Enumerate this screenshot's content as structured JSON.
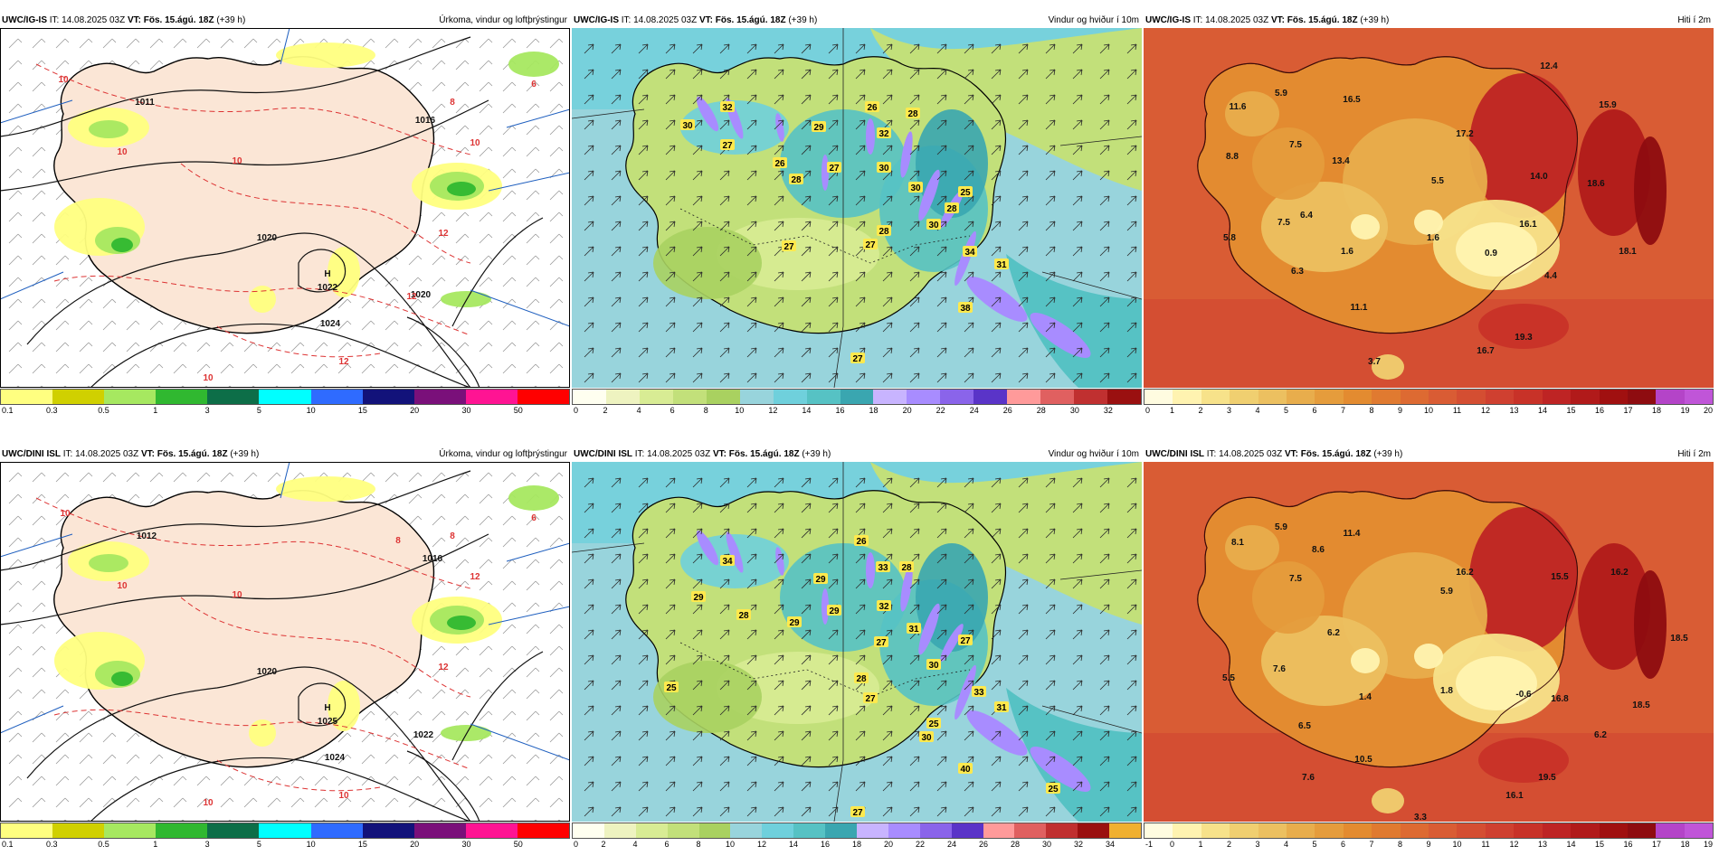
{
  "colors": {
    "precip": [
      "#ffff80",
      "#d0d000",
      "#a6e860",
      "#30b830",
      "#0d6e48",
      "#00ffff",
      "#2f6bff",
      "#12127a",
      "#7a107a",
      "#ff1493",
      "#ff0000"
    ],
    "wind": [
      "#fffff0",
      "#eef3c0",
      "#d8ec94",
      "#c2e07a",
      "#a9d160",
      "#98d4dc",
      "#6fd0dc",
      "#56c2c4",
      "#3aa6b0",
      "#c8b4ff",
      "#a88cff",
      "#8a64ea",
      "#5a34c8",
      "#ff9a9a",
      "#e06060",
      "#c03030",
      "#9a1010",
      "#f0b030"
    ],
    "temp": [
      "#fffce0",
      "#fff3b0",
      "#f7e28a",
      "#f0cf70",
      "#ecc060",
      "#e8ad4c",
      "#e59c3c",
      "#e38b30",
      "#e07a30",
      "#dd6a32",
      "#d95c34",
      "#d44e32",
      "#cf4030",
      "#c83228",
      "#be2424",
      "#b11a1a",
      "#a01010",
      "#8e0c10",
      "#b444c8",
      "#c055d8"
    ]
  },
  "panels": [
    {
      "model": "UWC/IG-IS",
      "it_label": "IT:",
      "it_value": "14.08.2025 03Z",
      "vt_label": "VT:",
      "vt_value": "Fös. 15.ágú. 18Z",
      "lead": "(+39 h)",
      "title": "Úrkoma, vindur og loftþrýstingur",
      "colorbar_ticks": [
        "0.1",
        "0.3",
        "0.5",
        "1",
        "3",
        "5",
        "10",
        "15",
        "20",
        "30",
        "50"
      ],
      "labels": [
        {
          "t": "1011"
        },
        {
          "t": "1016"
        },
        {
          "t": "1020"
        },
        {
          "t": "1024"
        },
        {
          "t": "H"
        },
        {
          "t": "1022"
        },
        {
          "t": "1020"
        },
        {
          "t": "10"
        },
        {
          "t": "10"
        },
        {
          "t": "10"
        },
        {
          "t": "12"
        },
        {
          "t": "12"
        },
        {
          "t": "12"
        },
        {
          "t": "10"
        },
        {
          "t": "10"
        },
        {
          "t": "8"
        },
        {
          "t": "6"
        }
      ]
    },
    {
      "model": "UWC/IG-IS",
      "it_label": "IT:",
      "it_value": "14.08.2025 03Z",
      "vt_label": "VT:",
      "vt_value": "Fös. 15.ágú. 18Z",
      "lead": "(+39 h)",
      "title": "Vindur og hviður í 10m",
      "colorbar_ticks": [
        "0",
        "2",
        "4",
        "6",
        "8",
        "10",
        "12",
        "14",
        "16",
        "18",
        "20",
        "22",
        "24",
        "26",
        "28",
        "30",
        "32"
      ],
      "labels": [
        {
          "t": "30"
        },
        {
          "t": "32"
        },
        {
          "t": "27"
        },
        {
          "t": "29"
        },
        {
          "t": "26"
        },
        {
          "t": "32"
        },
        {
          "t": "28"
        },
        {
          "t": "26"
        },
        {
          "t": "28"
        },
        {
          "t": "27"
        },
        {
          "t": "30"
        },
        {
          "t": "30"
        },
        {
          "t": "25"
        },
        {
          "t": "28"
        },
        {
          "t": "30"
        },
        {
          "t": "28"
        },
        {
          "t": "27"
        },
        {
          "t": "34"
        },
        {
          "t": "27"
        },
        {
          "t": "31"
        },
        {
          "t": "38"
        },
        {
          "t": "27"
        }
      ]
    },
    {
      "model": "UWC/IG-IS",
      "it_label": "IT:",
      "it_value": "14.08.2025 03Z",
      "vt_label": "VT:",
      "vt_value": "Fös. 15.ágú. 18Z",
      "lead": "(+39 h)",
      "title": "Hiti í 2m",
      "colorbar_ticks": [
        "0",
        "1",
        "2",
        "3",
        "4",
        "5",
        "6",
        "7",
        "8",
        "9",
        "10",
        "11",
        "12",
        "13",
        "14",
        "15",
        "16",
        "17",
        "18",
        "19",
        "20"
      ],
      "labels": [
        {
          "t": "12.4"
        },
        {
          "t": "5.9"
        },
        {
          "t": "11.6"
        },
        {
          "t": "16.5"
        },
        {
          "t": "15.9"
        },
        {
          "t": "7.5"
        },
        {
          "t": "17.2"
        },
        {
          "t": "8.8"
        },
        {
          "t": "13.4"
        },
        {
          "t": "14.0"
        },
        {
          "t": "5.5"
        },
        {
          "t": "18.6"
        },
        {
          "t": "6.4"
        },
        {
          "t": "7.5"
        },
        {
          "t": "16.1"
        },
        {
          "t": "5.8"
        },
        {
          "t": "1.6"
        },
        {
          "t": "1.6"
        },
        {
          "t": "0.9"
        },
        {
          "t": "18.1"
        },
        {
          "t": "6.3"
        },
        {
          "t": "4.4"
        },
        {
          "t": "11.1"
        },
        {
          "t": "19.3"
        },
        {
          "t": "16.7"
        },
        {
          "t": "3.7"
        }
      ]
    },
    {
      "model": "UWC/DINI ISL",
      "it_label": "IT:",
      "it_value": "14.08.2025 03Z",
      "vt_label": "VT:",
      "vt_value": "Fös. 15.ágú. 18Z",
      "lead": "(+39 h)",
      "title": "Úrkoma, vindur og loftþrýstingur",
      "colorbar_ticks": [
        "0.1",
        "0.3",
        "0.5",
        "1",
        "3",
        "5",
        "10",
        "15",
        "20",
        "30",
        "50"
      ],
      "labels": [
        {
          "t": "1012"
        },
        {
          "t": "1016"
        },
        {
          "t": "1020"
        },
        {
          "t": "1024"
        },
        {
          "t": "H"
        },
        {
          "t": "1025"
        },
        {
          "t": "1022"
        },
        {
          "t": "10"
        },
        {
          "t": "10"
        },
        {
          "t": "12"
        },
        {
          "t": "12"
        },
        {
          "t": "10"
        },
        {
          "t": "8"
        },
        {
          "t": "10"
        },
        {
          "t": "10"
        },
        {
          "t": "8"
        },
        {
          "t": "6"
        }
      ]
    },
    {
      "model": "UWC/DINI ISL",
      "it_label": "IT:",
      "it_value": "14.08.2025 03Z",
      "vt_label": "VT:",
      "vt_value": "Fös. 15.ágú. 18Z",
      "lead": "(+39 h)",
      "title": "Vindur og hviður í 10m",
      "colorbar_ticks": [
        "0",
        "2",
        "4",
        "6",
        "8",
        "10",
        "12",
        "14",
        "16",
        "18",
        "20",
        "22",
        "24",
        "26",
        "28",
        "30",
        "32",
        "34"
      ],
      "labels": [
        {
          "t": "34"
        },
        {
          "t": "29"
        },
        {
          "t": "26"
        },
        {
          "t": "33"
        },
        {
          "t": "28"
        },
        {
          "t": "29"
        },
        {
          "t": "28"
        },
        {
          "t": "29"
        },
        {
          "t": "32"
        },
        {
          "t": "29"
        },
        {
          "t": "27"
        },
        {
          "t": "31"
        },
        {
          "t": "27"
        },
        {
          "t": "25"
        },
        {
          "t": "28"
        },
        {
          "t": "30"
        },
        {
          "t": "27"
        },
        {
          "t": "33"
        },
        {
          "t": "25"
        },
        {
          "t": "31"
        },
        {
          "t": "30"
        },
        {
          "t": "40"
        },
        {
          "t": "25"
        },
        {
          "t": "27"
        }
      ]
    },
    {
      "model": "UWC/DINI ISL",
      "it_label": "IT:",
      "it_value": "14.08.2025 03Z",
      "vt_label": "VT:",
      "vt_value": "Fös. 15.ágú. 18Z",
      "lead": "(+39 h)",
      "title": "Hiti í 2m",
      "colorbar_ticks": [
        "-1",
        "0",
        "1",
        "2",
        "3",
        "4",
        "5",
        "6",
        "7",
        "8",
        "9",
        "10",
        "11",
        "12",
        "13",
        "14",
        "15",
        "16",
        "17",
        "18",
        "19"
      ],
      "labels": [
        {
          "t": "5.9"
        },
        {
          "t": "11.4"
        },
        {
          "t": "8.1"
        },
        {
          "t": "8.6"
        },
        {
          "t": "16.2"
        },
        {
          "t": "7.5"
        },
        {
          "t": "15.5"
        },
        {
          "t": "16.2"
        },
        {
          "t": "5.9"
        },
        {
          "t": "6.2"
        },
        {
          "t": "18.5"
        },
        {
          "t": "7.6"
        },
        {
          "t": "5.5"
        },
        {
          "t": "1.4"
        },
        {
          "t": "1.8"
        },
        {
          "t": "-0.6"
        },
        {
          "t": "16.8"
        },
        {
          "t": "18.5"
        },
        {
          "t": "6.5"
        },
        {
          "t": "6.2"
        },
        {
          "t": "10.5"
        },
        {
          "t": "7.6"
        },
        {
          "t": "16.1"
        },
        {
          "t": "19.5"
        },
        {
          "t": "3.3"
        }
      ]
    }
  ]
}
